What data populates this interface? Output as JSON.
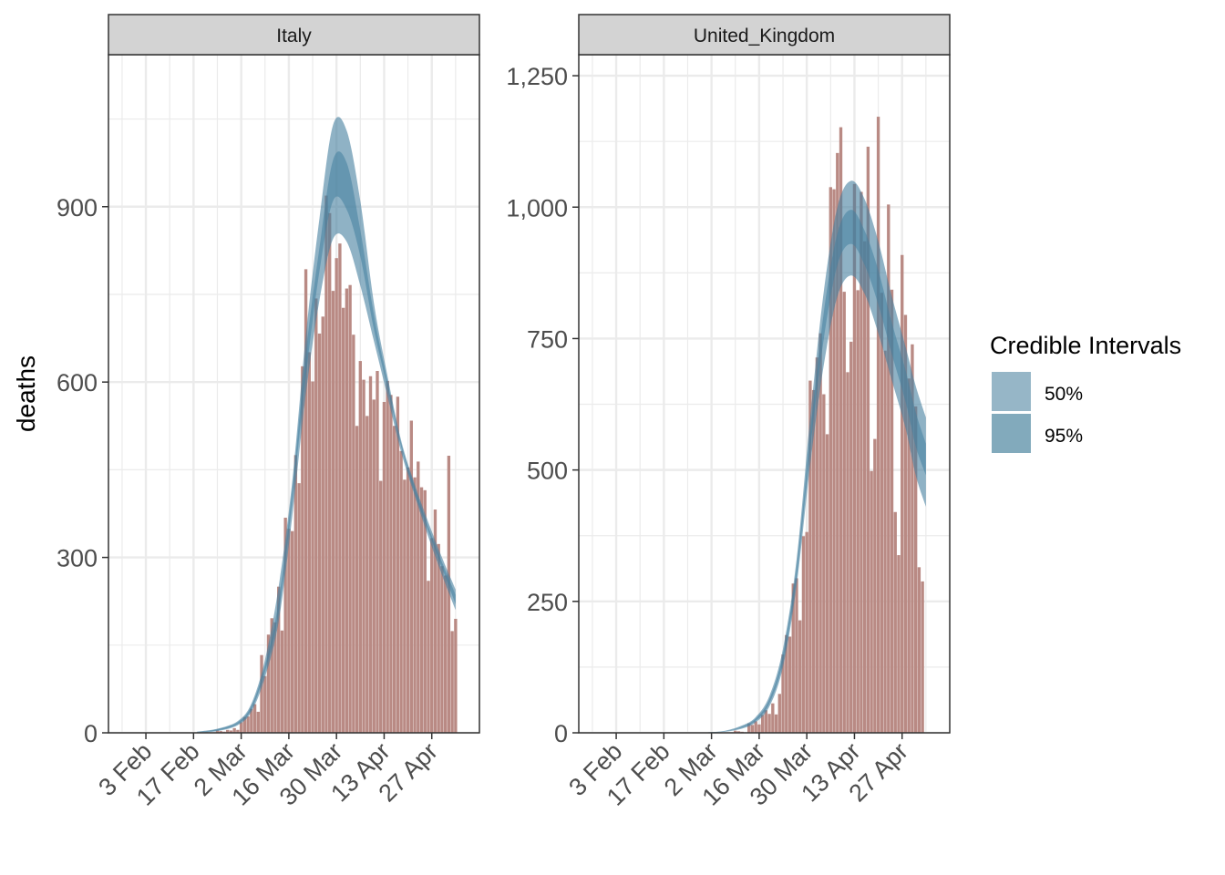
{
  "chart_data": {
    "type": "bar",
    "ylabel": "deaths",
    "xlabel": "",
    "x_tick_labels": [
      "3 Feb",
      "17 Feb",
      "2 Mar",
      "16 Mar",
      "30 Mar",
      "13 Apr",
      "27 Apr"
    ],
    "x_tick_dates": [
      "2020-02-03",
      "2020-02-17",
      "2020-03-02",
      "2020-03-16",
      "2020-03-30",
      "2020-04-13",
      "2020-04-27"
    ],
    "xlim": [
      "2020-01-23",
      "2020-05-11"
    ],
    "legend": {
      "title": "Credible Intervals",
      "position": "right",
      "entries": [
        {
          "label": "50%",
          "color": "#5e8fa9",
          "alpha": 0.65
        },
        {
          "label": "95%",
          "color": "#4d86a0",
          "alpha": 0.7
        }
      ]
    },
    "colors": {
      "bars": "#b98a84",
      "band": "#447f9e",
      "strip_bg": "#d3d3d3",
      "grid": "#ebebeb",
      "panel_border": "#333333"
    },
    "grid": true,
    "panels": [
      {
        "name": "Italy",
        "ylim": [
          0,
          1160
        ],
        "y_ticks": [
          0,
          300,
          600,
          900
        ],
        "y_tick_labels": [
          "0",
          "300",
          "600",
          "900"
        ],
        "deaths": [
          {
            "date": "2020-02-21",
            "value": 1
          },
          {
            "date": "2020-02-22",
            "value": 1
          },
          {
            "date": "2020-02-23",
            "value": 1
          },
          {
            "date": "2020-02-24",
            "value": 4
          },
          {
            "date": "2020-02-25",
            "value": 3
          },
          {
            "date": "2020-02-26",
            "value": 2
          },
          {
            "date": "2020-02-27",
            "value": 5
          },
          {
            "date": "2020-02-28",
            "value": 4
          },
          {
            "date": "2020-02-29",
            "value": 8
          },
          {
            "date": "2020-03-01",
            "value": 5
          },
          {
            "date": "2020-03-02",
            "value": 18
          },
          {
            "date": "2020-03-03",
            "value": 27
          },
          {
            "date": "2020-03-04",
            "value": 28
          },
          {
            "date": "2020-03-05",
            "value": 41
          },
          {
            "date": "2020-03-06",
            "value": 49
          },
          {
            "date": "2020-03-07",
            "value": 36
          },
          {
            "date": "2020-03-08",
            "value": 133
          },
          {
            "date": "2020-03-09",
            "value": 97
          },
          {
            "date": "2020-03-10",
            "value": 168
          },
          {
            "date": "2020-03-11",
            "value": 196
          },
          {
            "date": "2020-03-12",
            "value": 189
          },
          {
            "date": "2020-03-13",
            "value": 250
          },
          {
            "date": "2020-03-14",
            "value": 175
          },
          {
            "date": "2020-03-15",
            "value": 368
          },
          {
            "date": "2020-03-16",
            "value": 349
          },
          {
            "date": "2020-03-17",
            "value": 345
          },
          {
            "date": "2020-03-18",
            "value": 475
          },
          {
            "date": "2020-03-19",
            "value": 427
          },
          {
            "date": "2020-03-20",
            "value": 627
          },
          {
            "date": "2020-03-21",
            "value": 793
          },
          {
            "date": "2020-03-22",
            "value": 651
          },
          {
            "date": "2020-03-23",
            "value": 601
          },
          {
            "date": "2020-03-24",
            "value": 743
          },
          {
            "date": "2020-03-25",
            "value": 683
          },
          {
            "date": "2020-03-26",
            "value": 712
          },
          {
            "date": "2020-03-27",
            "value": 919
          },
          {
            "date": "2020-03-28",
            "value": 889
          },
          {
            "date": "2020-03-29",
            "value": 756
          },
          {
            "date": "2020-03-30",
            "value": 812
          },
          {
            "date": "2020-03-31",
            "value": 837
          },
          {
            "date": "2020-04-01",
            "value": 727
          },
          {
            "date": "2020-04-02",
            "value": 760
          },
          {
            "date": "2020-04-03",
            "value": 766
          },
          {
            "date": "2020-04-04",
            "value": 681
          },
          {
            "date": "2020-04-05",
            "value": 525
          },
          {
            "date": "2020-04-06",
            "value": 636
          },
          {
            "date": "2020-04-07",
            "value": 604
          },
          {
            "date": "2020-04-08",
            "value": 542
          },
          {
            "date": "2020-04-09",
            "value": 610
          },
          {
            "date": "2020-04-10",
            "value": 570
          },
          {
            "date": "2020-04-11",
            "value": 619
          },
          {
            "date": "2020-04-12",
            "value": 431
          },
          {
            "date": "2020-04-13",
            "value": 566
          },
          {
            "date": "2020-04-14",
            "value": 602
          },
          {
            "date": "2020-04-15",
            "value": 578
          },
          {
            "date": "2020-04-16",
            "value": 525
          },
          {
            "date": "2020-04-17",
            "value": 575
          },
          {
            "date": "2020-04-18",
            "value": 482
          },
          {
            "date": "2020-04-19",
            "value": 433
          },
          {
            "date": "2020-04-20",
            "value": 454
          },
          {
            "date": "2020-04-21",
            "value": 534
          },
          {
            "date": "2020-04-22",
            "value": 437
          },
          {
            "date": "2020-04-23",
            "value": 464
          },
          {
            "date": "2020-04-24",
            "value": 420
          },
          {
            "date": "2020-04-25",
            "value": 415
          },
          {
            "date": "2020-04-26",
            "value": 260
          },
          {
            "date": "2020-04-27",
            "value": 333
          },
          {
            "date": "2020-04-28",
            "value": 382
          },
          {
            "date": "2020-04-29",
            "value": 323
          },
          {
            "date": "2020-04-30",
            "value": 285
          },
          {
            "date": "2020-05-01",
            "value": 269
          },
          {
            "date": "2020-05-02",
            "value": 474
          },
          {
            "date": "2020-05-03",
            "value": 174
          },
          {
            "date": "2020-05-04",
            "value": 195
          }
        ],
        "fit_bands": {
          "dates": [
            "2020-02-18",
            "2020-02-24",
            "2020-03-01",
            "2020-03-05",
            "2020-03-09",
            "2020-03-13",
            "2020-03-17",
            "2020-03-21",
            "2020-03-25",
            "2020-03-29",
            "2020-04-02",
            "2020-04-06",
            "2020-04-10",
            "2020-04-14",
            "2020-04-18",
            "2020-04-22",
            "2020-04-26",
            "2020-04-30",
            "2020-05-04"
          ],
          "ci95_low": [
            0,
            3,
            13,
            36,
            95,
            190,
            370,
            580,
            740,
            845,
            840,
            765,
            670,
            575,
            480,
            405,
            335,
            270,
            210
          ],
          "ci95_high": [
            2,
            7,
            20,
            50,
            125,
            250,
            430,
            680,
            880,
            1040,
            1030,
            910,
            735,
            610,
            500,
            425,
            360,
            300,
            245
          ],
          "ci50_low": [
            1,
            4,
            15,
            40,
            105,
            205,
            395,
            610,
            790,
            910,
            895,
            815,
            690,
            590,
            490,
            410,
            345,
            282,
            220
          ],
          "ci50_high": [
            1,
            6,
            18,
            46,
            115,
            225,
            415,
            650,
            830,
            980,
            975,
            860,
            715,
            600,
            495,
            420,
            352,
            292,
            236
          ]
        }
      },
      {
        "name": "United_Kingdom",
        "ylim": [
          0,
          1290
        ],
        "y_ticks": [
          0,
          250,
          500,
          750,
          1000,
          1250
        ],
        "y_tick_labels": [
          "0",
          "250",
          "500",
          "750",
          "1,000",
          "1,250"
        ],
        "deaths": [
          {
            "date": "2020-03-05",
            "value": 1
          },
          {
            "date": "2020-03-06",
            "value": 1
          },
          {
            "date": "2020-03-07",
            "value": 1
          },
          {
            "date": "2020-03-08",
            "value": 1
          },
          {
            "date": "2020-03-09",
            "value": 4
          },
          {
            "date": "2020-03-10",
            "value": 3
          },
          {
            "date": "2020-03-11",
            "value": 2
          },
          {
            "date": "2020-03-12",
            "value": 1
          },
          {
            "date": "2020-03-13",
            "value": 18
          },
          {
            "date": "2020-03-14",
            "value": 15
          },
          {
            "date": "2020-03-15",
            "value": 22
          },
          {
            "date": "2020-03-16",
            "value": 16
          },
          {
            "date": "2020-03-17",
            "value": 34
          },
          {
            "date": "2020-03-18",
            "value": 43
          },
          {
            "date": "2020-03-19",
            "value": 36
          },
          {
            "date": "2020-03-20",
            "value": 56
          },
          {
            "date": "2020-03-21",
            "value": 35
          },
          {
            "date": "2020-03-22",
            "value": 74
          },
          {
            "date": "2020-03-23",
            "value": 149
          },
          {
            "date": "2020-03-24",
            "value": 186
          },
          {
            "date": "2020-03-25",
            "value": 183
          },
          {
            "date": "2020-03-26",
            "value": 284
          },
          {
            "date": "2020-03-27",
            "value": 294
          },
          {
            "date": "2020-03-28",
            "value": 214
          },
          {
            "date": "2020-03-29",
            "value": 374
          },
          {
            "date": "2020-03-30",
            "value": 382
          },
          {
            "date": "2020-03-31",
            "value": 670
          },
          {
            "date": "2020-04-01",
            "value": 652
          },
          {
            "date": "2020-04-02",
            "value": 714
          },
          {
            "date": "2020-04-03",
            "value": 760
          },
          {
            "date": "2020-04-04",
            "value": 644
          },
          {
            "date": "2020-04-05",
            "value": 568
          },
          {
            "date": "2020-04-06",
            "value": 1038
          },
          {
            "date": "2020-04-07",
            "value": 1034
          },
          {
            "date": "2020-04-08",
            "value": 1103
          },
          {
            "date": "2020-04-09",
            "value": 1152
          },
          {
            "date": "2020-04-10",
            "value": 839
          },
          {
            "date": "2020-04-11",
            "value": 686
          },
          {
            "date": "2020-04-12",
            "value": 744
          },
          {
            "date": "2020-04-13",
            "value": 1044
          },
          {
            "date": "2020-04-14",
            "value": 842
          },
          {
            "date": "2020-04-15",
            "value": 1029
          },
          {
            "date": "2020-04-16",
            "value": 935
          },
          {
            "date": "2020-04-17",
            "value": 1115
          },
          {
            "date": "2020-04-18",
            "value": 498
          },
          {
            "date": "2020-04-19",
            "value": 559
          },
          {
            "date": "2020-04-20",
            "value": 1172
          },
          {
            "date": "2020-04-21",
            "value": 837
          },
          {
            "date": "2020-04-22",
            "value": 727
          },
          {
            "date": "2020-04-23",
            "value": 1005
          },
          {
            "date": "2020-04-24",
            "value": 843
          },
          {
            "date": "2020-04-25",
            "value": 420
          },
          {
            "date": "2020-04-26",
            "value": 338
          },
          {
            "date": "2020-04-27",
            "value": 909
          },
          {
            "date": "2020-04-28",
            "value": 795
          },
          {
            "date": "2020-04-29",
            "value": 674
          },
          {
            "date": "2020-04-30",
            "value": 739
          },
          {
            "date": "2020-05-01",
            "value": 621
          },
          {
            "date": "2020-05-02",
            "value": 315
          },
          {
            "date": "2020-05-03",
            "value": 288
          }
        ],
        "fit_bands": {
          "dates": [
            "2020-03-01",
            "2020-03-06",
            "2020-03-11",
            "2020-03-15",
            "2020-03-19",
            "2020-03-23",
            "2020-03-27",
            "2020-03-31",
            "2020-04-04",
            "2020-04-08",
            "2020-04-12",
            "2020-04-16",
            "2020-04-20",
            "2020-04-24",
            "2020-04-28",
            "2020-05-01",
            "2020-05-04"
          ],
          "ci95_low": [
            0,
            2,
            8,
            20,
            50,
            125,
            280,
            510,
            700,
            830,
            870,
            835,
            760,
            670,
            580,
            490,
            430
          ],
          "ci95_high": [
            1,
            4,
            14,
            30,
            70,
            160,
            330,
            600,
            840,
            1000,
            1050,
            1015,
            935,
            830,
            735,
            660,
            600
          ],
          "ci50_low": [
            0,
            3,
            10,
            23,
            56,
            135,
            295,
            540,
            750,
            890,
            930,
            890,
            815,
            720,
            630,
            545,
            490
          ],
          "ci50_high": [
            1,
            3,
            12,
            27,
            64,
            150,
            315,
            570,
            800,
            950,
            995,
            955,
            880,
            780,
            690,
            610,
            550
          ]
        }
      }
    ]
  }
}
